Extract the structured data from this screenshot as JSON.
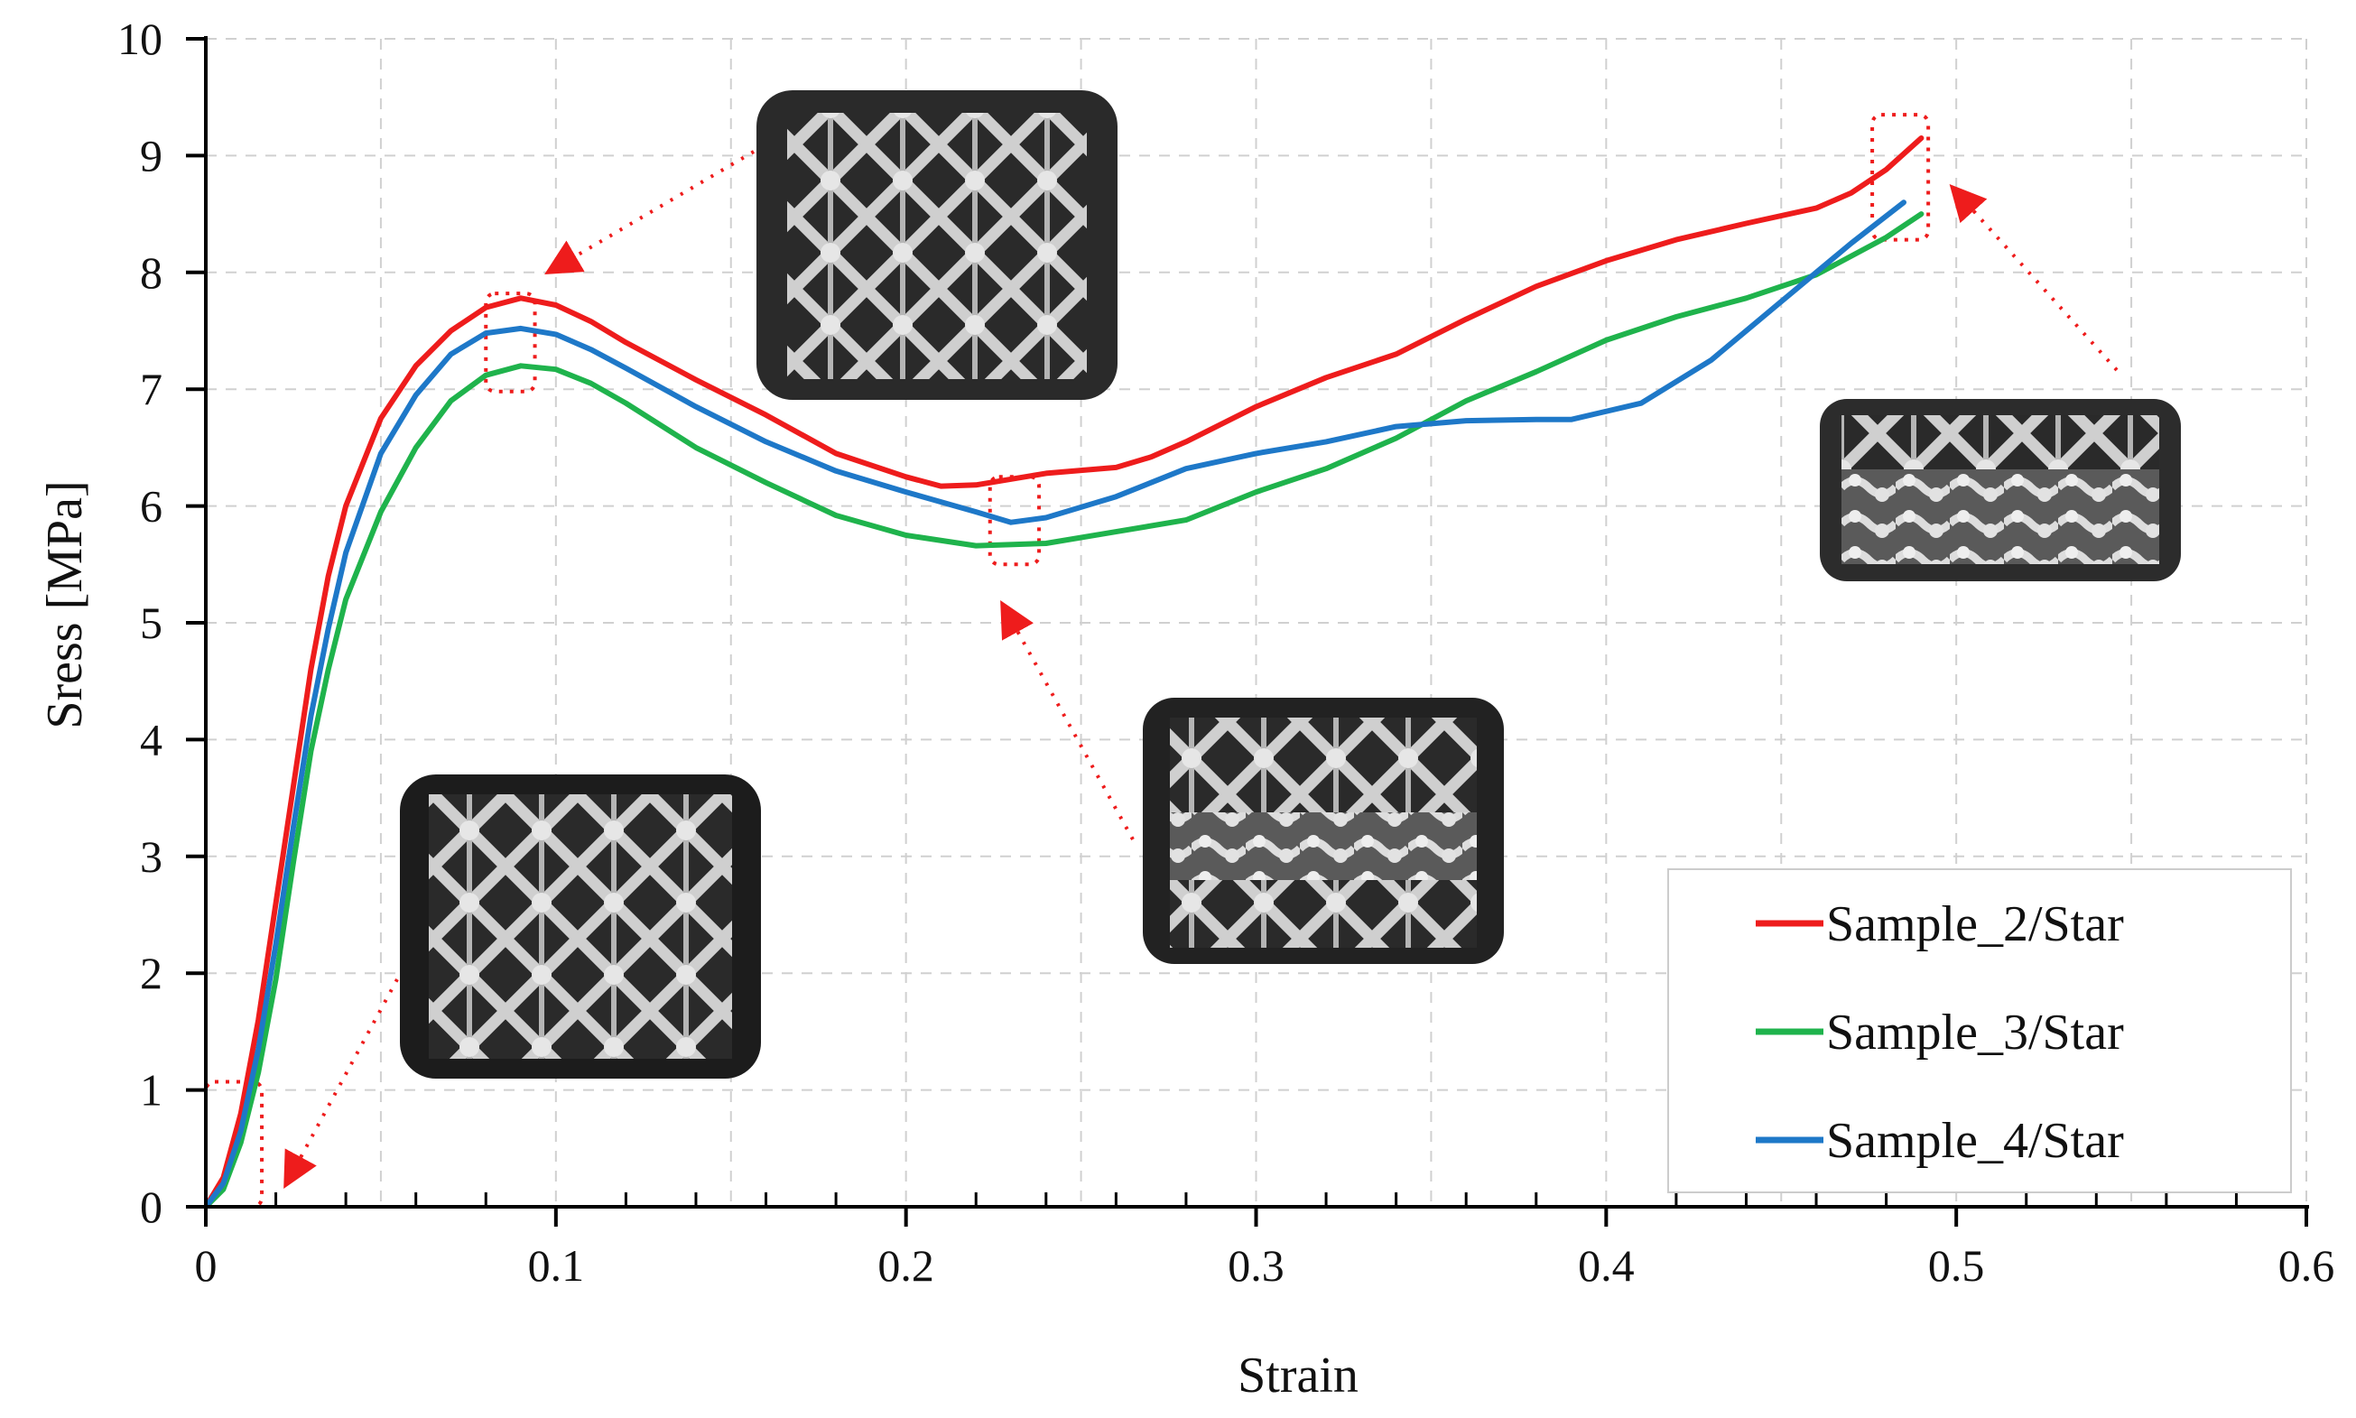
{
  "chart_data": {
    "type": "line",
    "title": "",
    "xlabel": "Strain",
    "ylabel": "Sress [MPa]",
    "xlim": [
      0,
      0.6
    ],
    "ylim": [
      0,
      10
    ],
    "x_ticks": [
      "0",
      "0.1",
      "0.2",
      "0.3",
      "0.4",
      "0.5",
      "0.6"
    ],
    "y_ticks": [
      "0",
      "1",
      "2",
      "3",
      "4",
      "5",
      "6",
      "7",
      "8",
      "9",
      "10"
    ],
    "grid": true,
    "legend_position": "bottom-right",
    "series": [
      {
        "name": "Sample_2/Star",
        "color": "#ee1c1c",
        "points": [
          [
            0,
            0
          ],
          [
            0.005,
            0.25
          ],
          [
            0.01,
            0.8
          ],
          [
            0.015,
            1.6
          ],
          [
            0.02,
            2.6
          ],
          [
            0.025,
            3.6
          ],
          [
            0.03,
            4.6
          ],
          [
            0.035,
            5.4
          ],
          [
            0.04,
            6.0
          ],
          [
            0.05,
            6.75
          ],
          [
            0.06,
            7.2
          ],
          [
            0.07,
            7.5
          ],
          [
            0.08,
            7.7
          ],
          [
            0.09,
            7.78
          ],
          [
            0.1,
            7.72
          ],
          [
            0.11,
            7.58
          ],
          [
            0.12,
            7.4
          ],
          [
            0.14,
            7.08
          ],
          [
            0.16,
            6.78
          ],
          [
            0.18,
            6.45
          ],
          [
            0.2,
            6.25
          ],
          [
            0.21,
            6.17
          ],
          [
            0.22,
            6.18
          ],
          [
            0.24,
            6.28
          ],
          [
            0.26,
            6.33
          ],
          [
            0.27,
            6.42
          ],
          [
            0.28,
            6.55
          ],
          [
            0.3,
            6.85
          ],
          [
            0.32,
            7.1
          ],
          [
            0.34,
            7.3
          ],
          [
            0.36,
            7.6
          ],
          [
            0.38,
            7.88
          ],
          [
            0.4,
            8.1
          ],
          [
            0.42,
            8.28
          ],
          [
            0.44,
            8.42
          ],
          [
            0.46,
            8.55
          ],
          [
            0.47,
            8.68
          ],
          [
            0.48,
            8.88
          ],
          [
            0.49,
            9.15
          ]
        ]
      },
      {
        "name": "Sample_3/Star",
        "color": "#1fb34c",
        "points": [
          [
            0,
            0
          ],
          [
            0.005,
            0.15
          ],
          [
            0.01,
            0.55
          ],
          [
            0.015,
            1.15
          ],
          [
            0.02,
            1.95
          ],
          [
            0.025,
            2.95
          ],
          [
            0.03,
            3.9
          ],
          [
            0.035,
            4.6
          ],
          [
            0.04,
            5.2
          ],
          [
            0.05,
            5.95
          ],
          [
            0.06,
            6.5
          ],
          [
            0.07,
            6.9
          ],
          [
            0.08,
            7.12
          ],
          [
            0.09,
            7.2
          ],
          [
            0.1,
            7.17
          ],
          [
            0.11,
            7.05
          ],
          [
            0.12,
            6.88
          ],
          [
            0.14,
            6.5
          ],
          [
            0.16,
            6.2
          ],
          [
            0.18,
            5.92
          ],
          [
            0.2,
            5.75
          ],
          [
            0.22,
            5.66
          ],
          [
            0.24,
            5.68
          ],
          [
            0.26,
            5.78
          ],
          [
            0.28,
            5.88
          ],
          [
            0.3,
            6.12
          ],
          [
            0.32,
            6.32
          ],
          [
            0.34,
            6.58
          ],
          [
            0.36,
            6.9
          ],
          [
            0.38,
            7.15
          ],
          [
            0.4,
            7.42
          ],
          [
            0.42,
            7.62
          ],
          [
            0.44,
            7.78
          ],
          [
            0.46,
            7.98
          ],
          [
            0.48,
            8.3
          ],
          [
            0.49,
            8.5
          ]
        ]
      },
      {
        "name": "Sample_4/Star",
        "color": "#1e78c8",
        "points": [
          [
            0,
            0
          ],
          [
            0.005,
            0.2
          ],
          [
            0.01,
            0.65
          ],
          [
            0.015,
            1.35
          ],
          [
            0.02,
            2.25
          ],
          [
            0.025,
            3.25
          ],
          [
            0.03,
            4.2
          ],
          [
            0.035,
            4.95
          ],
          [
            0.04,
            5.6
          ],
          [
            0.05,
            6.45
          ],
          [
            0.06,
            6.95
          ],
          [
            0.07,
            7.3
          ],
          [
            0.08,
            7.48
          ],
          [
            0.09,
            7.52
          ],
          [
            0.1,
            7.47
          ],
          [
            0.11,
            7.34
          ],
          [
            0.12,
            7.18
          ],
          [
            0.14,
            6.85
          ],
          [
            0.16,
            6.55
          ],
          [
            0.18,
            6.3
          ],
          [
            0.2,
            6.12
          ],
          [
            0.22,
            5.95
          ],
          [
            0.23,
            5.86
          ],
          [
            0.24,
            5.9
          ],
          [
            0.26,
            6.08
          ],
          [
            0.28,
            6.32
          ],
          [
            0.3,
            6.45
          ],
          [
            0.32,
            6.55
          ],
          [
            0.34,
            6.68
          ],
          [
            0.36,
            6.73
          ],
          [
            0.38,
            6.74
          ],
          [
            0.39,
            6.74
          ],
          [
            0.41,
            6.88
          ],
          [
            0.43,
            7.25
          ],
          [
            0.45,
            7.75
          ],
          [
            0.47,
            8.25
          ],
          [
            0.485,
            8.6
          ]
        ]
      }
    ],
    "annotations": [
      {
        "type": "dotted-box",
        "x": [
          0,
          0.016
        ],
        "y": [
          0,
          1.07
        ]
      },
      {
        "type": "dotted-box",
        "x": [
          0.08,
          0.094
        ],
        "y": [
          6.98,
          7.82
        ]
      },
      {
        "type": "dotted-box",
        "x": [
          0.224,
          0.238
        ],
        "y": [
          5.5,
          6.25
        ]
      },
      {
        "type": "dotted-box",
        "x": [
          0.476,
          0.492
        ],
        "y": [
          8.28,
          9.35
        ]
      }
    ],
    "inset_photos": [
      {
        "name": "initial-lattice-photo",
        "stage": "initial"
      },
      {
        "name": "first-peak-lattice-photo",
        "stage": "first-peak"
      },
      {
        "name": "valley-lattice-photo",
        "stage": "valley"
      },
      {
        "name": "densified-lattice-photo",
        "stage": "densification"
      }
    ]
  }
}
